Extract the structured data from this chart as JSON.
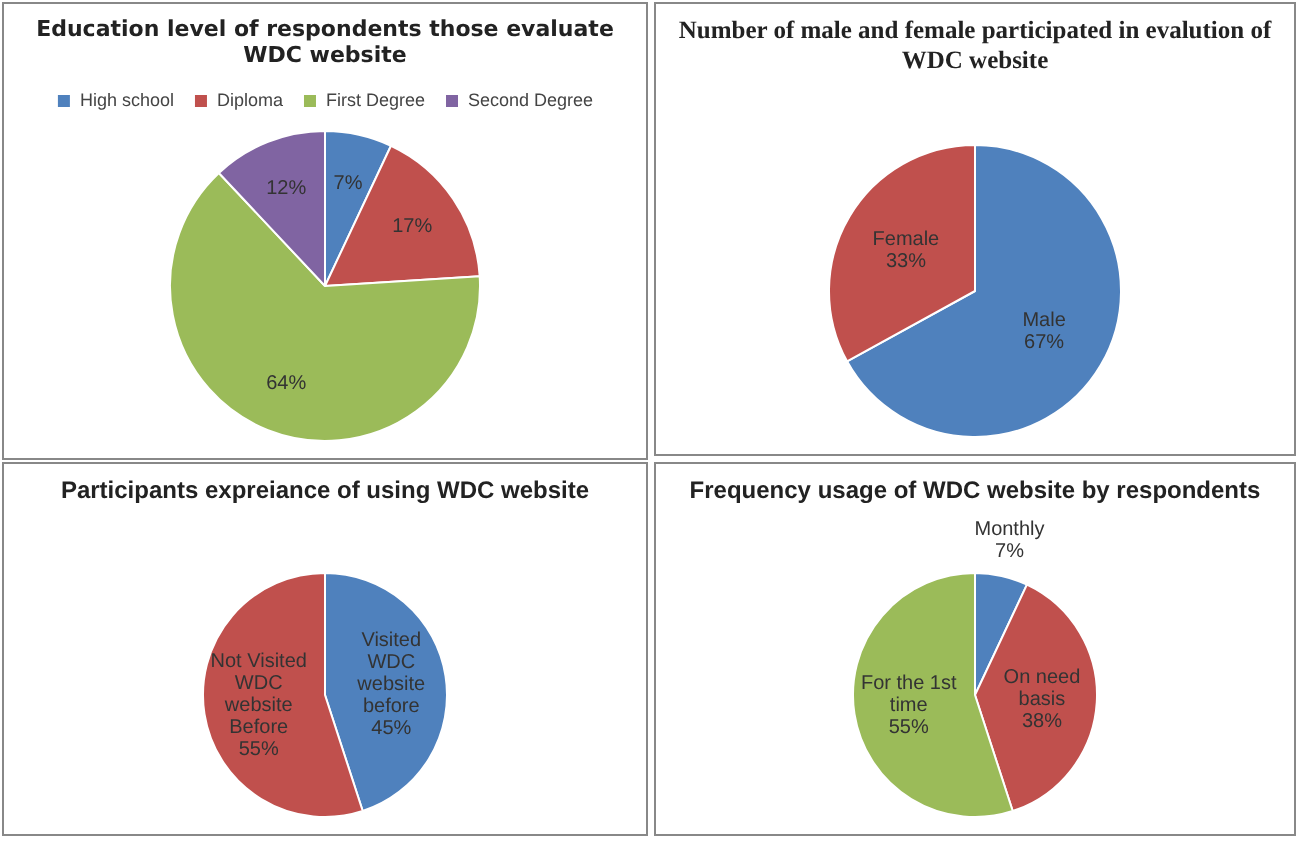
{
  "chart_data": [
    {
      "type": "pie",
      "title": "Education level of respondents those evaluate WDC website",
      "categories": [
        "High school",
        "Diploma",
        "First Degree",
        "Second Degree"
      ],
      "values": [
        7,
        17,
        64,
        12
      ],
      "colors": [
        "#4f81bd",
        "#c0504d",
        "#9bbb59",
        "#8064a2"
      ],
      "value_labels": [
        "7%",
        "17%",
        "64%",
        "12%"
      ],
      "legend": "top"
    },
    {
      "type": "pie",
      "title": "Number of male and female participated in evalution of WDC website",
      "categories": [
        "Male",
        "Female"
      ],
      "values": [
        67,
        33
      ],
      "colors": [
        "#4f81bd",
        "#c0504d"
      ],
      "value_labels": [
        "67%",
        "33%"
      ]
    },
    {
      "type": "pie",
      "title": "Participants expreiance of using WDC website",
      "categories": [
        "Visited WDC website before",
        "Not Visited WDC website Before"
      ],
      "values": [
        45,
        55
      ],
      "colors": [
        "#4f81bd",
        "#c0504d"
      ],
      "value_labels": [
        "45%",
        "55%"
      ]
    },
    {
      "type": "pie",
      "title": "Frequency usage of WDC website by respondents",
      "categories": [
        "Monthly",
        "On need basis",
        "For the 1st time"
      ],
      "values": [
        7,
        38,
        55
      ],
      "colors": [
        "#4f81bd",
        "#c0504d",
        "#9bbb59"
      ],
      "value_labels": [
        "7%",
        "38%",
        "55%"
      ]
    }
  ]
}
